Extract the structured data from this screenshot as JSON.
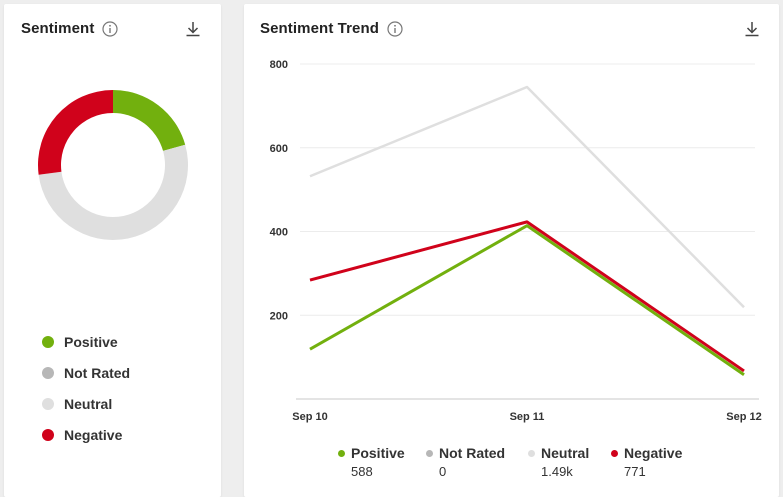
{
  "colors": {
    "positive": "#72b00e",
    "not_rated": "#b7b7b7",
    "neutral": "#dfdfdf",
    "negative": "#d0021b"
  },
  "left_card": {
    "title": "Sentiment",
    "info_icon": "info-icon",
    "download_icon": "download-icon",
    "legend": [
      {
        "label": "Positive",
        "color": "#72b00e"
      },
      {
        "label": "Not Rated",
        "color": "#b7b7b7"
      },
      {
        "label": "Neutral",
        "color": "#dfdfdf"
      },
      {
        "label": "Negative",
        "color": "#d0021b"
      }
    ]
  },
  "right_card": {
    "title": "Sentiment Trend",
    "info_icon": "info-icon",
    "download_icon": "download-icon",
    "legend": [
      {
        "label": "Positive",
        "value": "588",
        "color": "#72b00e"
      },
      {
        "label": "Not Rated",
        "value": "0",
        "color": "#b7b7b7"
      },
      {
        "label": "Neutral",
        "value": "1.49k",
        "color": "#dfdfdf"
      },
      {
        "label": "Negative",
        "value": "771",
        "color": "#d0021b"
      }
    ]
  },
  "chart_data": [
    {
      "type": "pie",
      "title": "Sentiment",
      "categories": [
        "Positive",
        "Not Rated",
        "Neutral",
        "Negative"
      ],
      "values": [
        588,
        0,
        1490,
        771
      ],
      "colors": [
        "#72b00e",
        "#b7b7b7",
        "#dfdfdf",
        "#d0021b"
      ]
    },
    {
      "type": "line",
      "title": "Sentiment Trend",
      "x": [
        "Sep 10",
        "Sep 11",
        "Sep 12"
      ],
      "yticks": [
        200,
        400,
        600,
        800
      ],
      "ylim": [
        0,
        800
      ],
      "grid": true,
      "series": [
        {
          "name": "Neutral",
          "values": [
            532,
            745,
            219
          ],
          "color": "#dfdfdf"
        },
        {
          "name": "Negative",
          "values": [
            284,
            423,
            67
          ],
          "color": "#d0021b"
        },
        {
          "name": "Positive",
          "values": [
            119,
            414,
            58
          ],
          "color": "#72b00e"
        }
      ]
    }
  ]
}
